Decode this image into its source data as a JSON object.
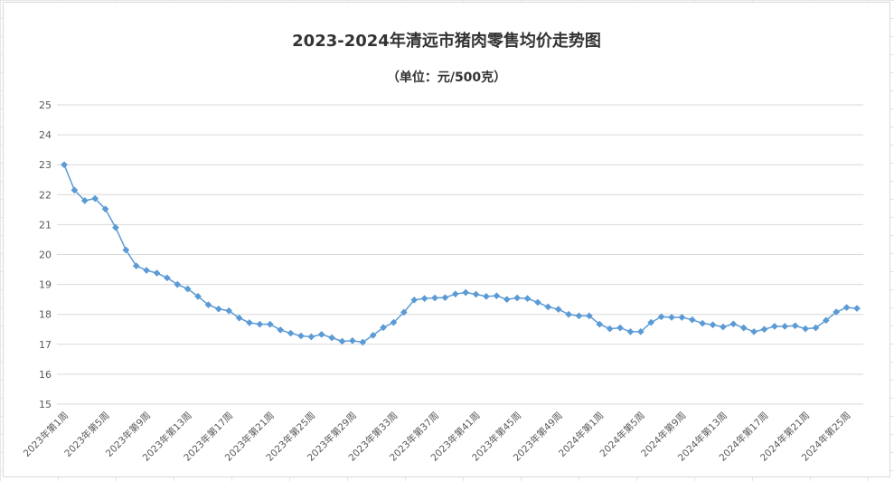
{
  "chart_data": {
    "type": "line",
    "title": "2023-2024年清远市猪肉零售均价走势图",
    "subtitle": "（单位：元/500克）",
    "xlabel": "",
    "ylabel": "",
    "ylim": [
      15,
      25
    ],
    "yticks": [
      15,
      16,
      17,
      18,
      19,
      20,
      21,
      22,
      23,
      24,
      25
    ],
    "grid": true,
    "legend": "none",
    "categories": [
      "2023年第1周",
      "2023年第2周",
      "2023年第3周",
      "2023年第4周",
      "2023年第5周",
      "2023年第6周",
      "2023年第7周",
      "2023年第8周",
      "2023年第9周",
      "2023年第10周",
      "2023年第11周",
      "2023年第12周",
      "2023年第13周",
      "2023年第14周",
      "2023年第15周",
      "2023年第16周",
      "2023年第17周",
      "2023年第18周",
      "2023年第19周",
      "2023年第20周",
      "2023年第21周",
      "2023年第22周",
      "2023年第23周",
      "2023年第24周",
      "2023年第25周",
      "2023年第26周",
      "2023年第27周",
      "2023年第28周",
      "2023年第29周",
      "2023年第30周",
      "2023年第31周",
      "2023年第32周",
      "2023年第33周",
      "2023年第34周",
      "2023年第35周",
      "2023年第36周",
      "2023年第37周",
      "2023年第38周",
      "2023年第39周",
      "2023年第40周",
      "2023年第41周",
      "2023年第42周",
      "2023年第43周",
      "2023年第44周",
      "2023年第45周",
      "2023年第46周",
      "2023年第47周",
      "2023年第48周",
      "2023年第49周",
      "2023年第50周",
      "2023年第51周",
      "2023年第52周",
      "2024年第1周",
      "2024年第2周",
      "2024年第3周",
      "2024年第4周",
      "2024年第5周",
      "2024年第6周",
      "2024年第7周",
      "2024年第8周",
      "2024年第9周",
      "2024年第10周",
      "2024年第11周",
      "2024年第12周",
      "2024年第13周",
      "2024年第14周",
      "2024年第15周",
      "2024年第16周",
      "2024年第17周",
      "2024年第18周",
      "2024年第19周",
      "2024年第20周",
      "2024年第21周",
      "2024年第22周",
      "2024年第23周",
      "2024年第24周",
      "2024年第25周",
      "2024年第26周"
    ],
    "shown_tick_labels": [
      "2023年第1周",
      "2023年第5周",
      "2023年第9周",
      "2023年第13周",
      "2023年第17周",
      "2023年第21周",
      "2023年第25周",
      "2023年第29周",
      "2023年第33周",
      "2023年第37周",
      "2023年第41周",
      "2023年第45周",
      "2023年第49周",
      "2024年第1周",
      "2024年第5周",
      "2024年第9周",
      "2024年第13周",
      "2024年第17周",
      "2024年第21周",
      "2024年第25周"
    ],
    "series": [
      {
        "color": "#5b9bd5",
        "values": [
          23.0,
          22.15,
          21.8,
          21.87,
          21.52,
          20.9,
          20.15,
          19.62,
          19.47,
          19.38,
          19.22,
          19.0,
          18.85,
          18.6,
          18.32,
          18.18,
          18.12,
          17.88,
          17.72,
          17.67,
          17.67,
          17.48,
          17.37,
          17.28,
          17.25,
          17.33,
          17.22,
          17.1,
          17.12,
          17.07,
          17.3,
          17.56,
          17.73,
          18.07,
          18.48,
          18.53,
          18.55,
          18.56,
          18.68,
          18.73,
          18.67,
          18.6,
          18.62,
          18.5,
          18.55,
          18.53,
          18.4,
          18.25,
          18.17,
          18.0,
          17.95,
          17.95,
          17.67,
          17.52,
          17.55,
          17.42,
          17.42,
          17.73,
          17.92,
          17.9,
          17.9,
          17.82,
          17.7,
          17.65,
          17.58,
          17.68,
          17.55,
          17.42,
          17.5,
          17.6,
          17.6,
          17.62,
          17.52,
          17.55,
          17.8,
          18.08,
          18.23,
          18.2
        ]
      }
    ]
  }
}
